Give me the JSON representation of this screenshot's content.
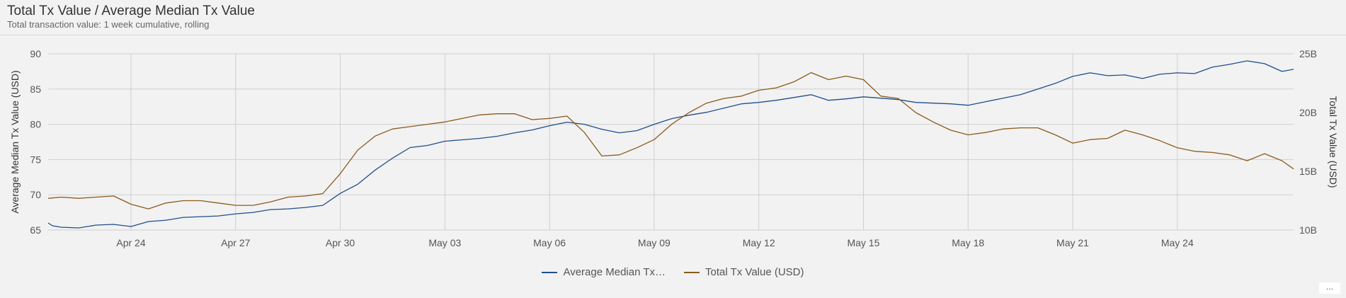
{
  "header": {
    "title": "Total Tx Value / Average Median Tx Value",
    "subtitle": "Total transaction value: 1 week cumulative, rolling"
  },
  "more_label": "...",
  "chart_data": {
    "type": "line",
    "x_ticks": [
      "Apr 24",
      "Apr 27",
      "Apr 30",
      "May 03",
      "May 06",
      "May 09",
      "May 12",
      "May 15",
      "May 18",
      "May 21",
      "May 24"
    ],
    "x_range": [
      "Apr 21 15:00",
      "May 27 08:00"
    ],
    "y_left": {
      "label": "Average Median Tx Value (USD)",
      "range": [
        65,
        90
      ],
      "ticks": [
        "65",
        "70",
        "75",
        "80",
        "85",
        "90"
      ]
    },
    "y_right": {
      "label": "Total Tx Value (USD)",
      "range": [
        10,
        25
      ],
      "unit": "B",
      "ticks": [
        "10B",
        "15B",
        "20B",
        "25B"
      ]
    },
    "grid": true,
    "legend_position": "bottom",
    "series": [
      {
        "name": "Average Median Tx…",
        "axis": "left",
        "color": "#1f4e8c",
        "points": [
          [
            "Apr 21 15:00",
            66.0
          ],
          [
            "Apr 21 18:00",
            65.6
          ],
          [
            "Apr 22 00:00",
            65.4
          ],
          [
            "Apr 22 12:00",
            65.3
          ],
          [
            "Apr 23 00:00",
            65.7
          ],
          [
            "Apr 23 12:00",
            65.8
          ],
          [
            "Apr 24 00:00",
            65.5
          ],
          [
            "Apr 24 12:00",
            66.2
          ],
          [
            "Apr 25 00:00",
            66.4
          ],
          [
            "Apr 25 12:00",
            66.8
          ],
          [
            "Apr 26 00:00",
            66.9
          ],
          [
            "Apr 26 12:00",
            67.0
          ],
          [
            "Apr 27 00:00",
            67.3
          ],
          [
            "Apr 27 12:00",
            67.5
          ],
          [
            "Apr 28 00:00",
            67.9
          ],
          [
            "Apr 28 12:00",
            68.0
          ],
          [
            "Apr 29 00:00",
            68.2
          ],
          [
            "Apr 29 12:00",
            68.5
          ],
          [
            "Apr 30 00:00",
            70.2
          ],
          [
            "Apr 30 12:00",
            71.5
          ],
          [
            "May 01 00:00",
            73.5
          ],
          [
            "May 01 12:00",
            75.2
          ],
          [
            "May 02 00:00",
            76.7
          ],
          [
            "May 02 12:00",
            77.0
          ],
          [
            "May 03 00:00",
            77.6
          ],
          [
            "May 03 12:00",
            77.8
          ],
          [
            "May 04 00:00",
            78.0
          ],
          [
            "May 04 12:00",
            78.3
          ],
          [
            "May 05 00:00",
            78.8
          ],
          [
            "May 05 12:00",
            79.2
          ],
          [
            "May 06 00:00",
            79.8
          ],
          [
            "May 06 12:00",
            80.3
          ],
          [
            "May 07 00:00",
            80.0
          ],
          [
            "May 07 12:00",
            79.3
          ],
          [
            "May 08 00:00",
            78.8
          ],
          [
            "May 08 12:00",
            79.1
          ],
          [
            "May 09 00:00",
            80.0
          ],
          [
            "May 09 12:00",
            80.8
          ],
          [
            "May 10 00:00",
            81.3
          ],
          [
            "May 10 12:00",
            81.7
          ],
          [
            "May 11 00:00",
            82.3
          ],
          [
            "May 11 12:00",
            82.9
          ],
          [
            "May 12 00:00",
            83.1
          ],
          [
            "May 12 12:00",
            83.4
          ],
          [
            "May 13 00:00",
            83.8
          ],
          [
            "May 13 12:00",
            84.2
          ],
          [
            "May 14 00:00",
            83.4
          ],
          [
            "May 14 12:00",
            83.6
          ],
          [
            "May 15 00:00",
            83.9
          ],
          [
            "May 15 12:00",
            83.7
          ],
          [
            "May 16 00:00",
            83.5
          ],
          [
            "May 16 12:00",
            83.1
          ],
          [
            "May 17 00:00",
            83.0
          ],
          [
            "May 17 12:00",
            82.9
          ],
          [
            "May 18 00:00",
            82.7
          ],
          [
            "May 18 12:00",
            83.2
          ],
          [
            "May 19 00:00",
            83.7
          ],
          [
            "May 19 12:00",
            84.2
          ],
          [
            "May 20 00:00",
            85.0
          ],
          [
            "May 20 12:00",
            85.8
          ],
          [
            "May 21 00:00",
            86.8
          ],
          [
            "May 21 12:00",
            87.3
          ],
          [
            "May 22 00:00",
            86.9
          ],
          [
            "May 22 12:00",
            87.0
          ],
          [
            "May 23 00:00",
            86.5
          ],
          [
            "May 23 12:00",
            87.1
          ],
          [
            "May 24 00:00",
            87.3
          ],
          [
            "May 24 12:00",
            87.2
          ],
          [
            "May 25 00:00",
            88.1
          ],
          [
            "May 25 12:00",
            88.5
          ],
          [
            "May 26 00:00",
            89.0
          ],
          [
            "May 26 12:00",
            88.6
          ],
          [
            "May 27 00:00",
            87.5
          ],
          [
            "May 27 08:00",
            87.8
          ]
        ]
      },
      {
        "name": "Total Tx Value (USD)",
        "axis": "right",
        "color": "#8b5a1e",
        "points": [
          [
            "Apr 21 15:00",
            12.7
          ],
          [
            "Apr 22 00:00",
            12.8
          ],
          [
            "Apr 22 12:00",
            12.7
          ],
          [
            "Apr 23 00:00",
            12.8
          ],
          [
            "Apr 23 12:00",
            12.9
          ],
          [
            "Apr 24 00:00",
            12.2
          ],
          [
            "Apr 24 12:00",
            11.8
          ],
          [
            "Apr 25 00:00",
            12.3
          ],
          [
            "Apr 25 12:00",
            12.5
          ],
          [
            "Apr 26 00:00",
            12.5
          ],
          [
            "Apr 26 12:00",
            12.3
          ],
          [
            "Apr 27 00:00",
            12.1
          ],
          [
            "Apr 27 12:00",
            12.1
          ],
          [
            "Apr 28 00:00",
            12.4
          ],
          [
            "Apr 28 12:00",
            12.8
          ],
          [
            "Apr 29 00:00",
            12.9
          ],
          [
            "Apr 29 12:00",
            13.1
          ],
          [
            "Apr 30 00:00",
            14.8
          ],
          [
            "Apr 30 12:00",
            16.8
          ],
          [
            "May 01 00:00",
            18.0
          ],
          [
            "May 01 12:00",
            18.6
          ],
          [
            "May 02 00:00",
            18.8
          ],
          [
            "May 02 12:00",
            19.0
          ],
          [
            "May 03 00:00",
            19.2
          ],
          [
            "May 03 12:00",
            19.5
          ],
          [
            "May 04 00:00",
            19.8
          ],
          [
            "May 04 12:00",
            19.9
          ],
          [
            "May 05 00:00",
            19.9
          ],
          [
            "May 05 12:00",
            19.4
          ],
          [
            "May 06 00:00",
            19.5
          ],
          [
            "May 06 12:00",
            19.7
          ],
          [
            "May 07 00:00",
            18.3
          ],
          [
            "May 07 12:00",
            16.3
          ],
          [
            "May 08 00:00",
            16.4
          ],
          [
            "May 08 12:00",
            17.0
          ],
          [
            "May 09 00:00",
            17.7
          ],
          [
            "May 09 12:00",
            19.0
          ],
          [
            "May 10 00:00",
            20.0
          ],
          [
            "May 10 12:00",
            20.8
          ],
          [
            "May 11 00:00",
            21.2
          ],
          [
            "May 11 12:00",
            21.4
          ],
          [
            "May 12 00:00",
            21.9
          ],
          [
            "May 12 12:00",
            22.1
          ],
          [
            "May 13 00:00",
            22.6
          ],
          [
            "May 13 12:00",
            23.4
          ],
          [
            "May 14 00:00",
            22.8
          ],
          [
            "May 14 12:00",
            23.1
          ],
          [
            "May 15 00:00",
            22.8
          ],
          [
            "May 15 12:00",
            21.4
          ],
          [
            "May 16 00:00",
            21.2
          ],
          [
            "May 16 12:00",
            20.0
          ],
          [
            "May 17 00:00",
            19.2
          ],
          [
            "May 17 12:00",
            18.5
          ],
          [
            "May 18 00:00",
            18.1
          ],
          [
            "May 18 12:00",
            18.3
          ],
          [
            "May 19 00:00",
            18.6
          ],
          [
            "May 19 12:00",
            18.7
          ],
          [
            "May 20 00:00",
            18.7
          ],
          [
            "May 20 12:00",
            18.1
          ],
          [
            "May 21 00:00",
            17.4
          ],
          [
            "May 21 12:00",
            17.7
          ],
          [
            "May 22 00:00",
            17.8
          ],
          [
            "May 22 12:00",
            18.5
          ],
          [
            "May 23 00:00",
            18.1
          ],
          [
            "May 23 12:00",
            17.6
          ],
          [
            "May 24 00:00",
            17.0
          ],
          [
            "May 24 12:00",
            16.7
          ],
          [
            "May 25 00:00",
            16.6
          ],
          [
            "May 25 12:00",
            16.4
          ],
          [
            "May 26 00:00",
            15.9
          ],
          [
            "May 26 12:00",
            16.5
          ],
          [
            "May 27 00:00",
            15.9
          ],
          [
            "May 27 08:00",
            15.2
          ]
        ]
      }
    ]
  }
}
